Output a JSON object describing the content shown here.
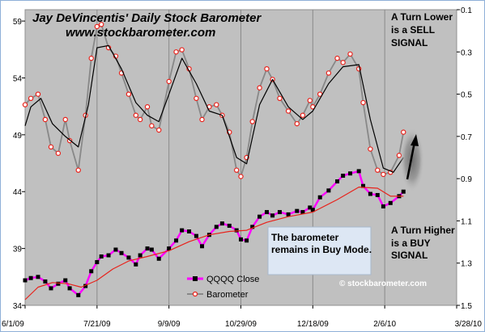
{
  "chart_data": {
    "type": "line",
    "title": "Jay DeVincentis' Daily Stock Barometer",
    "subtitle": "www.stockbarometer.com",
    "x_tick_labels": [
      "6/1/09",
      "7/21/09",
      "9/9/09",
      "10/29/09",
      "12/18/09",
      "2/6/10",
      "3/28/10"
    ],
    "x_range": [
      "2009-06-01",
      "2010-03-28"
    ],
    "y_left": {
      "ticks": [
        34,
        39,
        44,
        49,
        54,
        59
      ],
      "range": [
        34,
        60
      ]
    },
    "y_right": {
      "ticks": [
        "0.1",
        "0.3",
        "0.5",
        "0.7",
        "0.9",
        "1.1",
        "1.3",
        "1.5"
      ],
      "range": [
        0.1,
        1.5
      ],
      "reversed": true
    },
    "grid": "vertical",
    "series": [
      {
        "name": "QQQQ Close",
        "axis": "left",
        "color": "#ff00ff",
        "marker": "black-square",
        "points": [
          [
            "2009-06-01",
            36.2
          ],
          [
            "2009-06-05",
            36.4
          ],
          [
            "2009-06-10",
            36.5
          ],
          [
            "2009-06-15",
            36.1
          ],
          [
            "2009-06-19",
            35.5
          ],
          [
            "2009-06-24",
            35.9
          ],
          [
            "2009-06-29",
            36.2
          ],
          [
            "2009-07-02",
            35.5
          ],
          [
            "2009-07-08",
            34.9
          ],
          [
            "2009-07-13",
            35.7
          ],
          [
            "2009-07-17",
            37.0
          ],
          [
            "2009-07-21",
            37.8
          ],
          [
            "2009-07-24",
            38.3
          ],
          [
            "2009-07-29",
            38.4
          ],
          [
            "2009-08-03",
            38.9
          ],
          [
            "2009-08-07",
            38.6
          ],
          [
            "2009-08-12",
            38.2
          ],
          [
            "2009-08-17",
            37.6
          ],
          [
            "2009-08-20",
            38.4
          ],
          [
            "2009-08-25",
            39.0
          ],
          [
            "2009-08-28",
            38.9
          ],
          [
            "2009-09-02",
            38.1
          ],
          [
            "2009-09-09",
            39.0
          ],
          [
            "2009-09-14",
            39.7
          ],
          [
            "2009-09-18",
            40.6
          ],
          [
            "2009-09-23",
            40.5
          ],
          [
            "2009-09-28",
            40.1
          ],
          [
            "2009-10-02",
            39.2
          ],
          [
            "2009-10-07",
            40.2
          ],
          [
            "2009-10-12",
            40.9
          ],
          [
            "2009-10-16",
            41.2
          ],
          [
            "2009-10-21",
            41.0
          ],
          [
            "2009-10-26",
            40.6
          ],
          [
            "2009-10-29",
            39.8
          ],
          [
            "2009-11-02",
            39.7
          ],
          [
            "2009-11-06",
            40.9
          ],
          [
            "2009-11-11",
            41.8
          ],
          [
            "2009-11-16",
            42.2
          ],
          [
            "2009-11-20",
            41.9
          ],
          [
            "2009-11-25",
            42.2
          ],
          [
            "2009-12-01",
            42.0
          ],
          [
            "2009-12-07",
            42.3
          ],
          [
            "2009-12-11",
            42.2
          ],
          [
            "2009-12-16",
            42.6
          ],
          [
            "2009-12-18",
            42.4
          ],
          [
            "2009-12-23",
            43.5
          ],
          [
            "2009-12-29",
            44.1
          ],
          [
            "2010-01-04",
            44.9
          ],
          [
            "2010-01-08",
            45.4
          ],
          [
            "2010-01-13",
            45.6
          ],
          [
            "2010-01-19",
            45.8
          ],
          [
            "2010-01-22",
            44.5
          ],
          [
            "2010-01-27",
            43.8
          ],
          [
            "2010-02-01",
            43.7
          ],
          [
            "2010-02-05",
            42.7
          ],
          [
            "2010-02-10",
            43.0
          ],
          [
            "2010-02-16",
            43.6
          ],
          [
            "2010-02-19",
            44.0
          ]
        ]
      },
      {
        "name": "QQQQ moving average",
        "axis": "left",
        "color": "#e8221b",
        "points": [
          [
            "2009-06-01",
            34.5
          ],
          [
            "2009-06-10",
            35.6
          ],
          [
            "2009-06-20",
            36.0
          ],
          [
            "2009-07-01",
            35.9
          ],
          [
            "2009-07-10",
            35.6
          ],
          [
            "2009-07-21",
            36.2
          ],
          [
            "2009-08-01",
            37.2
          ],
          [
            "2009-08-12",
            37.9
          ],
          [
            "2009-08-25",
            38.3
          ],
          [
            "2009-09-09",
            38.8
          ],
          [
            "2009-09-23",
            39.6
          ],
          [
            "2009-10-07",
            40.2
          ],
          [
            "2009-10-21",
            40.5
          ],
          [
            "2009-11-02",
            40.6
          ],
          [
            "2009-11-16",
            41.3
          ],
          [
            "2009-12-01",
            41.8
          ],
          [
            "2009-12-18",
            42.2
          ],
          [
            "2010-01-04",
            43.3
          ],
          [
            "2010-01-19",
            44.4
          ],
          [
            "2010-02-01",
            44.3
          ],
          [
            "2010-02-10",
            43.6
          ],
          [
            "2010-02-19",
            43.6
          ]
        ]
      },
      {
        "name": "Barometer",
        "axis": "right",
        "color": "#888888",
        "marker": "red-circle",
        "points": [
          [
            "2009-06-01",
            0.55
          ],
          [
            "2009-06-05",
            0.52
          ],
          [
            "2009-06-10",
            0.5
          ],
          [
            "2009-06-15",
            0.62
          ],
          [
            "2009-06-19",
            0.75
          ],
          [
            "2009-06-24",
            0.78
          ],
          [
            "2009-06-29",
            0.62
          ],
          [
            "2009-07-02",
            0.72
          ],
          [
            "2009-07-08",
            0.86
          ],
          [
            "2009-07-13",
            0.6
          ],
          [
            "2009-07-17",
            0.33
          ],
          [
            "2009-07-21",
            0.18
          ],
          [
            "2009-07-24",
            0.17
          ],
          [
            "2009-07-29",
            0.28
          ],
          [
            "2009-08-03",
            0.32
          ],
          [
            "2009-08-07",
            0.4
          ],
          [
            "2009-08-12",
            0.5
          ],
          [
            "2009-08-17",
            0.6
          ],
          [
            "2009-08-20",
            0.62
          ],
          [
            "2009-08-25",
            0.56
          ],
          [
            "2009-08-28",
            0.65
          ],
          [
            "2009-09-02",
            0.67
          ],
          [
            "2009-09-09",
            0.44
          ],
          [
            "2009-09-14",
            0.3
          ],
          [
            "2009-09-18",
            0.29
          ],
          [
            "2009-09-23",
            0.38
          ],
          [
            "2009-09-28",
            0.52
          ],
          [
            "2009-10-02",
            0.62
          ],
          [
            "2009-10-07",
            0.56
          ],
          [
            "2009-10-12",
            0.55
          ],
          [
            "2009-10-16",
            0.6
          ],
          [
            "2009-10-21",
            0.68
          ],
          [
            "2009-10-26",
            0.86
          ],
          [
            "2009-10-29",
            0.89
          ],
          [
            "2009-11-02",
            0.8
          ],
          [
            "2009-11-06",
            0.63
          ],
          [
            "2009-11-11",
            0.47
          ],
          [
            "2009-11-16",
            0.38
          ],
          [
            "2009-11-20",
            0.43
          ],
          [
            "2009-11-25",
            0.52
          ],
          [
            "2009-12-01",
            0.58
          ],
          [
            "2009-12-07",
            0.64
          ],
          [
            "2009-12-11",
            0.6
          ],
          [
            "2009-12-16",
            0.53
          ],
          [
            "2009-12-18",
            0.56
          ],
          [
            "2009-12-23",
            0.5
          ],
          [
            "2009-12-29",
            0.4
          ],
          [
            "2010-01-04",
            0.33
          ],
          [
            "2010-01-08",
            0.35
          ],
          [
            "2010-01-13",
            0.31
          ],
          [
            "2010-01-19",
            0.38
          ],
          [
            "2010-01-22",
            0.54
          ],
          [
            "2010-01-27",
            0.76
          ],
          [
            "2010-02-01",
            0.86
          ],
          [
            "2010-02-05",
            0.88
          ],
          [
            "2010-02-10",
            0.87
          ],
          [
            "2010-02-16",
            0.79
          ],
          [
            "2010-02-19",
            0.68
          ]
        ]
      },
      {
        "name": "Barometer moving average",
        "axis": "right",
        "color": "#000000",
        "points": [
          [
            "2009-06-01",
            0.65
          ],
          [
            "2009-06-05",
            0.56
          ],
          [
            "2009-06-12",
            0.52
          ],
          [
            "2009-06-20",
            0.64
          ],
          [
            "2009-06-29",
            0.7
          ],
          [
            "2009-07-08",
            0.75
          ],
          [
            "2009-07-15",
            0.55
          ],
          [
            "2009-07-21",
            0.28
          ],
          [
            "2009-07-29",
            0.27
          ],
          [
            "2009-08-07",
            0.38
          ],
          [
            "2009-08-17",
            0.54
          ],
          [
            "2009-08-25",
            0.6
          ],
          [
            "2009-09-02",
            0.63
          ],
          [
            "2009-09-09",
            0.5
          ],
          [
            "2009-09-18",
            0.33
          ],
          [
            "2009-09-28",
            0.45
          ],
          [
            "2009-10-07",
            0.58
          ],
          [
            "2009-10-16",
            0.6
          ],
          [
            "2009-10-26",
            0.8
          ],
          [
            "2009-11-02",
            0.83
          ],
          [
            "2009-11-11",
            0.55
          ],
          [
            "2009-11-20",
            0.43
          ],
          [
            "2009-12-01",
            0.56
          ],
          [
            "2009-12-11",
            0.62
          ],
          [
            "2009-12-18",
            0.58
          ],
          [
            "2009-12-29",
            0.45
          ],
          [
            "2010-01-08",
            0.37
          ],
          [
            "2010-01-19",
            0.36
          ],
          [
            "2010-01-27",
            0.62
          ],
          [
            "2010-02-05",
            0.85
          ],
          [
            "2010-02-12",
            0.87
          ],
          [
            "2010-02-19",
            0.8
          ]
        ]
      }
    ],
    "legend": [
      {
        "label": "QQQQ Close",
        "color": "#ff00ff",
        "marker": "black-square"
      },
      {
        "label": "Barometer",
        "color": "#888888",
        "marker": "red-circle"
      }
    ],
    "legend_position": "bottom-center",
    "annotations": {
      "sell_signal": [
        "A Turn Lower",
        "is a SELL",
        "SIGNAL"
      ],
      "buy_signal": [
        "A Turn Higher",
        "is a BUY",
        "SIGNAL"
      ],
      "buy_mode": [
        "The barometer",
        "remains in Buy Mode."
      ],
      "credit": "© stockbarometer.com"
    },
    "colors": {
      "plot_background": "#c0c0c0",
      "price_line": "#ff00ff",
      "price_average": "#e8221b",
      "barometer_line": "#888888",
      "barometer_average": "#000000",
      "note_box": "#dde7f4"
    }
  }
}
